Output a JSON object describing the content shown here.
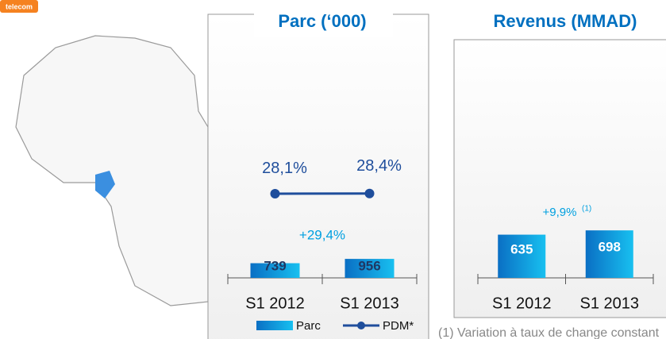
{
  "logo": "telecom",
  "footnote": "(1) Variation à taux de change constant",
  "chart_data": [
    {
      "type": "bar",
      "title": "Parc (‘000)",
      "categories": [
        "S1 2012",
        "S1 2013"
      ],
      "series": [
        {
          "name": "Parc",
          "type": "bar",
          "color": "#0a7fd0",
          "values": [
            739,
            956
          ]
        },
        {
          "name": "PDM*",
          "type": "line",
          "color": "#1f4e9c",
          "values": [
            28.1,
            28.4
          ],
          "value_labels": [
            "28,1%",
            "28,4%"
          ]
        }
      ],
      "annotation": "+29,4%",
      "legend": "bottom"
    },
    {
      "type": "bar",
      "title": "Revenus (MMAD)",
      "categories": [
        "S1 2012",
        "S1 2013"
      ],
      "series": [
        {
          "name": "Revenus",
          "type": "bar",
          "color": "#0a7fd0",
          "values": [
            635,
            698
          ]
        }
      ],
      "annotation": "+9,9%",
      "annotation_note": "(1)"
    }
  ]
}
